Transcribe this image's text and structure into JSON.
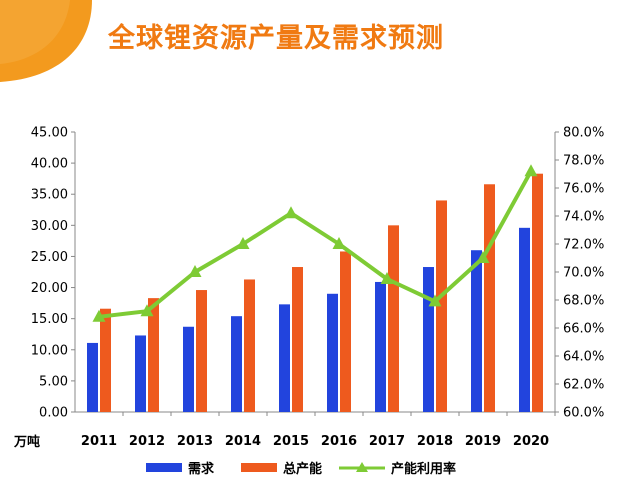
{
  "header": {
    "title": "全球锂资源产量及需求预测"
  },
  "chart_data": {
    "type": "bar",
    "categories": [
      "2011",
      "2012",
      "2013",
      "2014",
      "2015",
      "2016",
      "2017",
      "2018",
      "2019",
      "2020"
    ],
    "series": [
      {
        "name": "需求",
        "type": "bar",
        "axis": "left",
        "color": "#2244dd",
        "values": [
          11.1,
          12.3,
          13.7,
          15.4,
          17.3,
          19.0,
          20.9,
          23.3,
          26.0,
          29.6
        ]
      },
      {
        "name": "总产能",
        "type": "bar",
        "axis": "left",
        "color": "#ee5a1e",
        "values": [
          16.6,
          18.3,
          19.6,
          21.3,
          23.3,
          25.8,
          30.0,
          34.0,
          36.6,
          38.3
        ]
      },
      {
        "name": "产能利用率",
        "type": "line",
        "axis": "right",
        "color": "#7ecb35",
        "values": [
          66.8,
          67.2,
          70.0,
          72.0,
          74.2,
          72.0,
          69.5,
          67.9,
          71.0,
          77.2
        ]
      }
    ],
    "left_axis": {
      "unit_label": "万吨",
      "range": [
        0,
        45
      ],
      "ticks": [
        "0.00",
        "5.00",
        "10.00",
        "15.00",
        "20.00",
        "25.00",
        "30.00",
        "35.00",
        "40.00",
        "45.00"
      ]
    },
    "right_axis": {
      "range": [
        60,
        80
      ],
      "ticks": [
        "60.0%",
        "62.0%",
        "64.0%",
        "66.0%",
        "68.0%",
        "70.0%",
        "72.0%",
        "74.0%",
        "76.0%",
        "78.0%",
        "80.0%"
      ]
    },
    "grid": false,
    "legend_position": "bottom"
  }
}
